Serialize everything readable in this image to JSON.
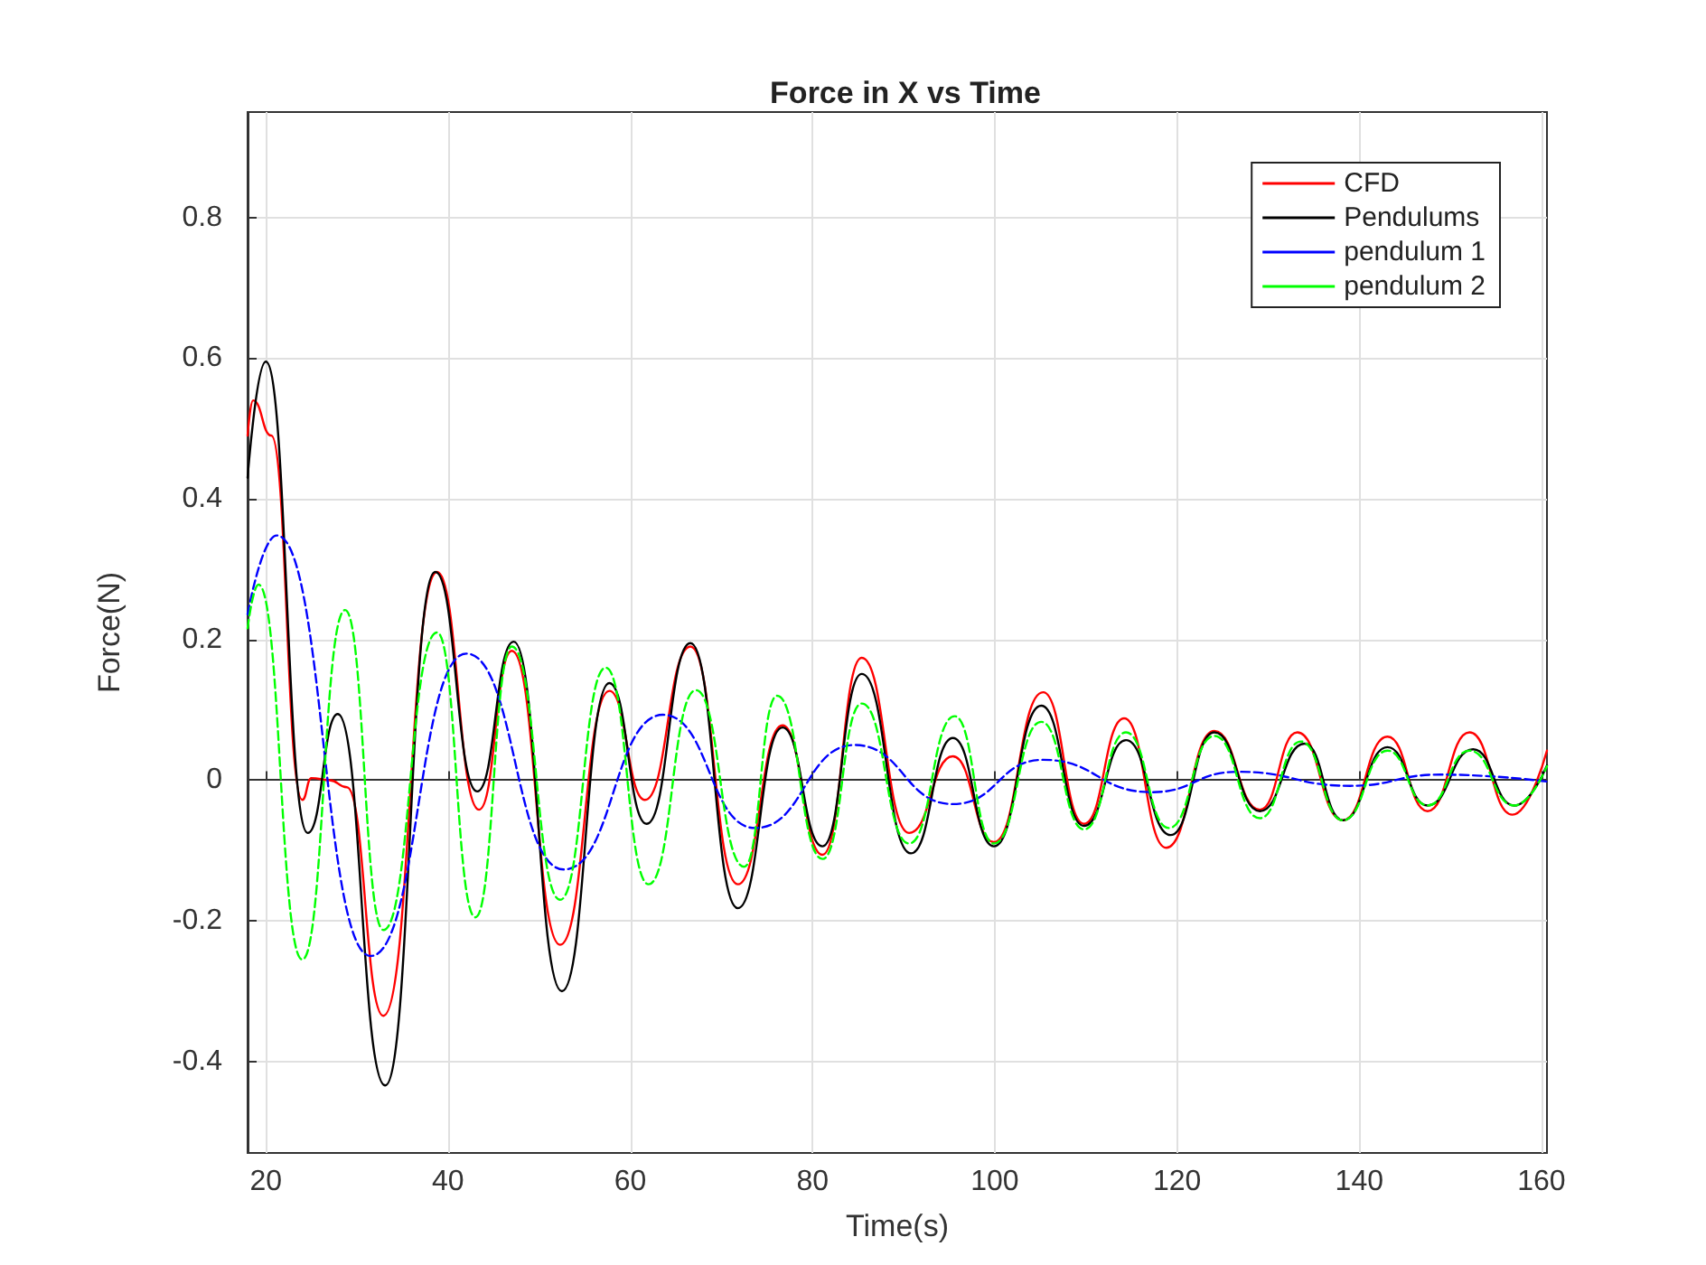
{
  "chart_data": {
    "type": "line",
    "title": "Force in X vs Time",
    "xlabel": "Time(s)",
    "ylabel": "Force(N)",
    "xlim": [
      18,
      160.6
    ],
    "xticks": [
      20,
      40,
      60,
      80,
      100,
      120,
      140,
      160
    ],
    "ylim": [
      -0.53,
      0.95
    ],
    "yticks": [
      -0.4,
      -0.2,
      0,
      0.2,
      0.4,
      0.6,
      0.8
    ],
    "grid": true,
    "legend": "top right",
    "marker": "none",
    "line_style": "solid",
    "series": [
      {
        "name": "CFD",
        "color": "#ff0000",
        "x": [
          18,
          18.6,
          20.6,
          24.0,
          25,
          27,
          28.9,
          32.9,
          38.8,
          43.4,
          47.0,
          52.3,
          57.7,
          61.6,
          66.6,
          71.8,
          76.7,
          81.1,
          85.4,
          90.6,
          95.4,
          99.9,
          105.3,
          109.8,
          114.2,
          118.8,
          124.1,
          129.1,
          133.2,
          138.2,
          143.1,
          147.5,
          152.1,
          156.8,
          160.6
        ],
        "values": [
          0.49,
          0.54,
          0.49,
          -0.028,
          0.003,
          0.0,
          -0.01,
          -0.335,
          0.296,
          -0.042,
          0.184,
          -0.234,
          0.127,
          -0.028,
          0.19,
          -0.148,
          0.078,
          -0.106,
          0.174,
          -0.075,
          0.034,
          -0.088,
          0.125,
          -0.062,
          0.088,
          -0.096,
          0.07,
          -0.042,
          0.068,
          -0.057,
          0.062,
          -0.044,
          0.068,
          -0.049,
          0.042
        ]
      },
      {
        "name": "Pendulums",
        "color": "#000000",
        "x": [
          18,
          20,
          24.6,
          27.9,
          33.1,
          38.6,
          43.2,
          47.2,
          52.5,
          57.7,
          61.8,
          66.6,
          71.8,
          76.7,
          81.1,
          85.4,
          90.8,
          95.4,
          99.9,
          105.1,
          109.8,
          114.4,
          119.3,
          124.1,
          129.1,
          134.0,
          138.2,
          143.1,
          147.5,
          152.5,
          157.0,
          160.6
        ],
        "values": [
          0.43,
          0.595,
          -0.075,
          0.094,
          -0.434,
          0.296,
          -0.016,
          0.197,
          -0.3,
          0.138,
          -0.062,
          0.195,
          -0.182,
          0.075,
          -0.094,
          0.151,
          -0.104,
          0.06,
          -0.094,
          0.106,
          -0.065,
          0.057,
          -0.078,
          0.068,
          -0.044,
          0.052,
          -0.057,
          0.047,
          -0.036,
          0.044,
          -0.036,
          0.021
        ]
      },
      {
        "name": "pendulum 1",
        "color": "#0000ff",
        "line_style": "dashed",
        "x": [
          18,
          21.2,
          31.5,
          42.0,
          52.7,
          63.6,
          73.7,
          84.6,
          95.4,
          105.3,
          117.2,
          126.7,
          139,
          148.9,
          160.6
        ],
        "values": [
          0.236,
          0.348,
          -0.25,
          0.18,
          -0.127,
          0.093,
          -0.068,
          0.05,
          -0.034,
          0.029,
          -0.017,
          0.012,
          -0.008,
          0.008,
          -0.002
        ]
      },
      {
        "name": "pendulum 2",
        "color": "#00ff00",
        "line_style": "dashed",
        "x": [
          18,
          19.2,
          24,
          28.7,
          32.9,
          38.8,
          43,
          47,
          52.3,
          57.3,
          62.0,
          67.2,
          72.5,
          76.1,
          81.1,
          85.4,
          90.6,
          95.6,
          99.9,
          105.1,
          109.8,
          114.4,
          119.1,
          124.1,
          129.1,
          133.6,
          138.2,
          143.1,
          147.5,
          152.1,
          157,
          160.6
        ],
        "values": [
          0.216,
          0.278,
          -0.255,
          0.242,
          -0.213,
          0.21,
          -0.195,
          0.19,
          -0.17,
          0.16,
          -0.148,
          0.128,
          -0.123,
          0.12,
          -0.112,
          0.109,
          -0.09,
          0.091,
          -0.09,
          0.083,
          -0.07,
          0.068,
          -0.068,
          0.063,
          -0.054,
          0.055,
          -0.057,
          0.042,
          -0.036,
          0.042,
          -0.036,
          0.02
        ]
      }
    ]
  }
}
